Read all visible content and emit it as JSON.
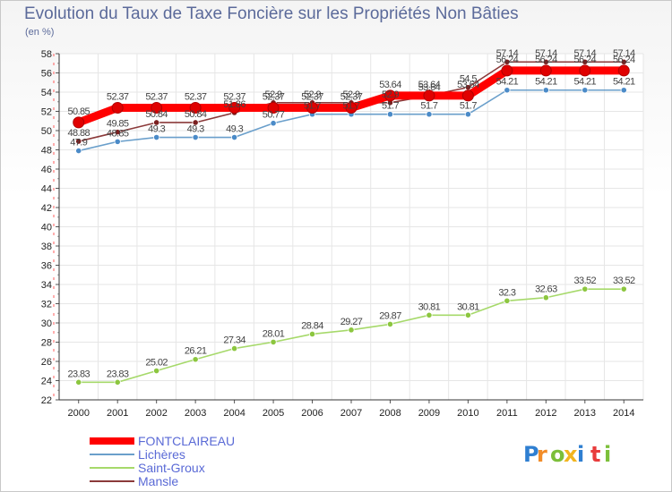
{
  "chart_data": {
    "type": "line",
    "title": "Evolution du Taux de Taxe Foncière sur les Propriétés Non Bâties",
    "ylabel": "(en %)",
    "xlabel": "",
    "x": [
      2000,
      2001,
      2002,
      2003,
      2004,
      2005,
      2006,
      2007,
      2008,
      2009,
      2010,
      2011,
      2012,
      2013,
      2014
    ],
    "x_labels": [
      "2000",
      "2001",
      "2002",
      "2003",
      "2004",
      "2005",
      "2006",
      "2007",
      "2008",
      "2009",
      "2010",
      "2011",
      "2012",
      "2013",
      "2014"
    ],
    "ylim": [
      22,
      58
    ],
    "yticks": [
      22,
      24,
      26,
      28,
      30,
      32,
      34,
      36,
      38,
      40,
      42,
      44,
      46,
      48,
      50,
      52,
      54,
      56,
      58
    ],
    "ytick_labels": [
      "22",
      "24",
      "26",
      "28",
      "30",
      "32",
      "34",
      "36",
      "38",
      "40",
      "42",
      "44",
      "46",
      "48",
      "50",
      "52",
      "54",
      "56",
      "58"
    ],
    "grid": true,
    "legend_position": "bottom-left",
    "series": [
      {
        "name": "Saint-Groux",
        "color": "#a6d96a",
        "marker": "#8cc63f",
        "values": [
          23.83,
          23.83,
          25.02,
          26.21,
          27.34,
          28.01,
          28.84,
          29.27,
          29.87,
          30.81,
          30.81,
          32.3,
          32.63,
          33.52,
          33.52
        ],
        "labels": [
          "23.83",
          "23.83",
          "25.02",
          "26.21",
          "27.34",
          "28.01",
          "28.84",
          "29.27",
          "29.87",
          "30.81",
          "30.81",
          "32.3",
          "32.63",
          "33.52",
          "33.52"
        ]
      },
      {
        "name": "Lichères",
        "color": "#6a9fcb",
        "marker": "#4b8bc8",
        "values": [
          47.9,
          48.85,
          49.3,
          49.3,
          49.3,
          50.77,
          51.7,
          51.7,
          51.7,
          51.7,
          51.7,
          54.21,
          54.21,
          54.21,
          54.21
        ],
        "labels": [
          "47.9",
          "48.85",
          "49.3",
          "49.3",
          "49.3",
          "50.77",
          "51.7",
          "51.7",
          "51.7",
          "51.7",
          "51.7",
          "54.21",
          "54.21",
          "54.21",
          "54.21"
        ]
      },
      {
        "name": "Mansle",
        "color": "#8b3a3a",
        "marker": "#7a1f1f",
        "values": [
          48.88,
          49.85,
          50.84,
          50.84,
          51.86,
          52.9,
          52.9,
          52.9,
          52.9,
          53.64,
          54.5,
          57.14,
          57.14,
          57.14,
          57.14
        ],
        "labels": [
          "48.88",
          "49.85",
          "50.84",
          "50.84",
          "51.86",
          "52.9",
          "52.9",
          "52.9",
          "52.9",
          "53.64",
          "54.5",
          "57.14",
          "57.14",
          "57.14",
          "57.14"
        ]
      },
      {
        "name": "FONTCLAIREAU",
        "color": "#ff0000",
        "marker": "#e00000",
        "values": [
          50.85,
          52.37,
          52.37,
          52.37,
          52.37,
          52.37,
          52.37,
          52.37,
          53.64,
          53.64,
          53.64,
          56.24,
          56.24,
          56.24,
          56.24
        ],
        "labels": [
          "50.85",
          "52.37",
          "52.37",
          "52.37",
          "52.37",
          "52.37",
          "52.37",
          "52.37",
          "53.64",
          "53.64",
          "53.64",
          "56.24",
          "56.24",
          "56.24",
          "56.24"
        ]
      }
    ],
    "legend": [
      {
        "name": "FONTCLAIREAU",
        "color": "#ff0000"
      },
      {
        "name": "Lichères",
        "color": "#6a9fcb"
      },
      {
        "name": "Saint-Groux",
        "color": "#a6d96a"
      },
      {
        "name": "Mansle",
        "color": "#8b3a3a"
      }
    ]
  },
  "logo": {
    "letters": [
      "P",
      "r",
      "o",
      "x",
      "i",
      "t",
      "i"
    ],
    "colors": [
      "#2f7fd1",
      "#f28c28",
      "#7cbf3a",
      "#f2b51f",
      "#2f7fd1",
      "#e83c3c",
      "#7cbf3a"
    ]
  }
}
